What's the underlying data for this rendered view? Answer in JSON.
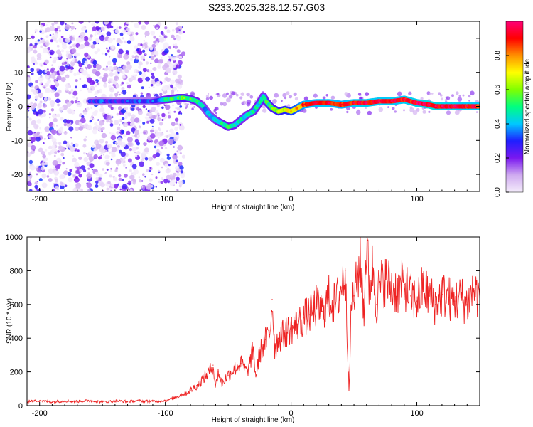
{
  "title": "S233.2025.328.12.57.G03",
  "chart_data": [
    {
      "type": "heatmap",
      "title": "S233.2025.328.12.57.G03",
      "xlabel": "Height of straight line (km)",
      "ylabel": "Frequency (Hz)",
      "xlim": [
        -210,
        150
      ],
      "ylim": [
        -25,
        25
      ],
      "xticks": [
        -200,
        -100,
        0,
        100
      ],
      "yticks": [
        20,
        10,
        0,
        -10,
        -20
      ],
      "xtick_labels": [
        "-200",
        "-100",
        "0",
        "100"
      ],
      "ytick_labels": [
        "20",
        "10",
        "0",
        "-10",
        "-20"
      ],
      "colorbar": {
        "label": "Normalized spectral amplitude",
        "range": [
          0,
          1
        ],
        "ticks": [
          0.0,
          0.2,
          0.4,
          0.6,
          0.8
        ],
        "tick_labels": [
          "0.0",
          "0.2",
          "0.4",
          "0.6",
          "0.8"
        ],
        "colors": [
          "#f4ecfb",
          "#cfaaf0",
          "#7a18f0",
          "#1f1fff",
          "#00c8ff",
          "#00ff80",
          "#80ff00",
          "#ffff00",
          "#ff9000",
          "#ff0000",
          "#ff0078"
        ]
      },
      "ridge": {
        "x": [
          -160,
          -150,
          -140,
          -130,
          -120,
          -110,
          -100,
          -95,
          -90,
          -85,
          -80,
          -75,
          -70,
          -65,
          -60,
          -55,
          -50,
          -45,
          -40,
          -35,
          -30,
          -25,
          -22,
          -20,
          -15,
          -10,
          -5,
          0,
          5,
          10,
          20,
          30,
          40,
          50,
          60,
          70,
          80,
          90,
          100,
          110,
          115,
          120,
          130,
          140,
          150
        ],
        "y": [
          1.5,
          1.5,
          1.5,
          1.5,
          1.5,
          1.5,
          2.0,
          2.2,
          2.5,
          2.5,
          2.2,
          1.5,
          0.0,
          -2.5,
          -4.0,
          -5.0,
          -6.0,
          -5.5,
          -4.0,
          -2.5,
          -1.5,
          1.0,
          3.0,
          1.5,
          -0.5,
          -1.5,
          -1.0,
          -1.5,
          -0.5,
          0.5,
          1.0,
          1.0,
          0.5,
          1.0,
          1.0,
          1.5,
          1.5,
          2.0,
          1.0,
          0.5,
          0.0,
          0.0,
          0.0,
          0.0,
          0.0
        ],
        "amp": [
          0.25,
          0.3,
          0.25,
          0.28,
          0.3,
          0.3,
          0.45,
          0.5,
          0.5,
          0.55,
          0.5,
          0.45,
          0.4,
          0.38,
          0.4,
          0.45,
          0.48,
          0.45,
          0.42,
          0.42,
          0.44,
          0.45,
          0.42,
          0.5,
          0.55,
          0.6,
          0.65,
          0.7,
          0.75,
          0.85,
          0.88,
          0.9,
          0.85,
          0.9,
          0.92,
          0.9,
          0.9,
          0.9,
          0.92,
          0.95,
          0.95,
          0.93,
          0.92,
          0.9,
          0.9
        ]
      }
    },
    {
      "type": "line",
      "xlabel": "Height of straight line (km)",
      "ylabel": "SNR (10 * v/v)",
      "xlim": [
        -210,
        150
      ],
      "ylim": [
        0,
        1000
      ],
      "xticks": [
        -200,
        -100,
        0,
        100
      ],
      "yticks": [
        0,
        200,
        400,
        600,
        800,
        1000
      ],
      "xtick_labels": [
        "-200",
        "-100",
        "0",
        "100"
      ],
      "ytick_labels": [
        "0",
        "200",
        "400",
        "600",
        "800",
        "1000"
      ],
      "series": [
        {
          "name": "SNR",
          "color": "#ee2222",
          "x": [
            -210,
            -200,
            -190,
            -180,
            -170,
            -160,
            -150,
            -140,
            -130,
            -120,
            -110,
            -100,
            -95,
            -90,
            -85,
            -80,
            -75,
            -70,
            -65,
            -62,
            -60,
            -58,
            -55,
            -50,
            -45,
            -40,
            -35,
            -30,
            -28,
            -25,
            -20,
            -17,
            -15,
            -13,
            -10,
            -5,
            0,
            5,
            10,
            15,
            20,
            25,
            30,
            35,
            40,
            43,
            45,
            46,
            48,
            50,
            52,
            55,
            58,
            60,
            62,
            65,
            68,
            70,
            75,
            80,
            85,
            90,
            95,
            100,
            105,
            110,
            115,
            120,
            125,
            130,
            135,
            140,
            145,
            150
          ],
          "y": [
            25,
            30,
            22,
            28,
            25,
            30,
            22,
            28,
            25,
            28,
            25,
            30,
            40,
            55,
            70,
            90,
            120,
            160,
            200,
            240,
            110,
            200,
            130,
            180,
            220,
            250,
            200,
            330,
            170,
            310,
            390,
            420,
            630,
            340,
            400,
            430,
            460,
            480,
            520,
            540,
            590,
            560,
            640,
            600,
            700,
            800,
            330,
            110,
            590,
            650,
            720,
            860,
            560,
            1000,
            700,
            820,
            600,
            700,
            750,
            700,
            680,
            720,
            650,
            620,
            700,
            650,
            600,
            660,
            640,
            620,
            640,
            600,
            690,
            640
          ]
        }
      ]
    }
  ]
}
